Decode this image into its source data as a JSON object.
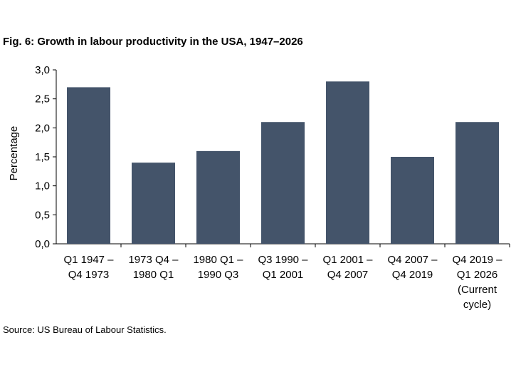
{
  "chart_data": {
    "type": "bar",
    "title": "Fig. 6: Growth in labour productivity in the USA, 1947–2026",
    "ylabel": "Percentage",
    "xlabel": "",
    "categories": [
      [
        "Q1 1947 –",
        "Q4 1973"
      ],
      [
        "1973 Q4 –",
        "1980 Q1"
      ],
      [
        "1980 Q1 –",
        "1990 Q3"
      ],
      [
        "Q3 1990 –",
        "Q1 2001"
      ],
      [
        "Q1 2001 –",
        "Q4 2007"
      ],
      [
        "Q4 2007 –",
        "Q4 2019"
      ],
      [
        "Q4 2019 –",
        "Q1 2026",
        "(Current",
        "cycle)"
      ]
    ],
    "values": [
      2.7,
      1.4,
      1.6,
      2.1,
      2.8,
      1.5,
      2.1
    ],
    "ylim": [
      0,
      3.0
    ],
    "yticks": [
      "0,0",
      "0,5",
      "1,0",
      "1,5",
      "2,0",
      "2,5",
      "3,0"
    ],
    "bar_color": "#44546a",
    "grid": false,
    "legend": "none",
    "source": "Source: US Bureau of Labour Statistics."
  }
}
